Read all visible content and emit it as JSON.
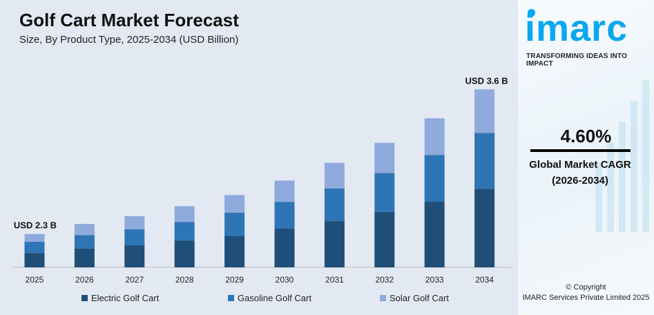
{
  "chart_data": {
    "type": "bar",
    "stacked": true,
    "title": "Golf Cart Market Forecast",
    "subtitle": "Size, By Product Type, 2025-2034 (USD Billion)",
    "categories": [
      "2025",
      "2026",
      "2027",
      "2028",
      "2029",
      "2030",
      "2031",
      "2032",
      "2033",
      "2034"
    ],
    "series": [
      {
        "name": "Electric Golf Cart",
        "color": "#1f4e79",
        "values": [
          0.99,
          1.04,
          1.06,
          1.12,
          1.15,
          1.24,
          1.3,
          1.39,
          1.47,
          1.59
        ]
      },
      {
        "name": "Gasoline Golf Cart",
        "color": "#2e75b6",
        "values": [
          0.77,
          0.73,
          0.77,
          0.77,
          0.85,
          0.86,
          0.92,
          0.97,
          1.05,
          1.13
        ]
      },
      {
        "name": "Solar Golf Cart",
        "color": "#8faadc",
        "values": [
          0.54,
          0.62,
          0.63,
          0.66,
          0.65,
          0.68,
          0.72,
          0.76,
          0.82,
          0.88
        ]
      }
    ],
    "annotations": [
      {
        "category": "2025",
        "text": "USD 2.3 B"
      },
      {
        "category": "2034",
        "text": "USD 3.6 B"
      }
    ],
    "grid": false,
    "legend_position": "bottom"
  },
  "sidebar": {
    "logo": "imarc",
    "tagline": "TRANSFORMING IDEAS INTO IMPACT",
    "cagr_value": "4.60%",
    "cagr_label": "Global Market CAGR",
    "cagr_period": "(2026-2034)",
    "copyright": "© Copyright",
    "company": "IMARC Services Private Limited 2025"
  }
}
